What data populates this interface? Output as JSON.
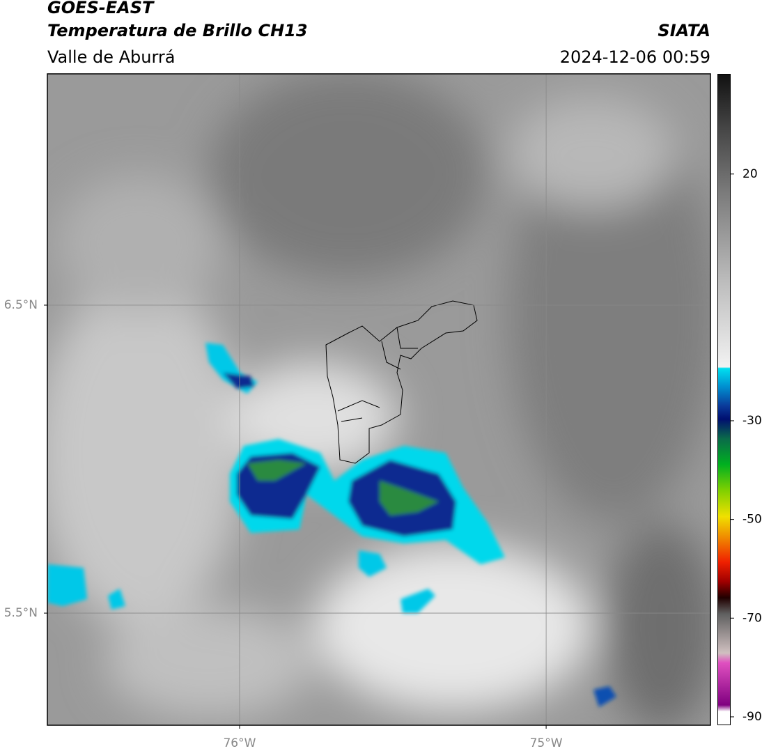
{
  "header": {
    "title": "GOES-EAST",
    "subtitle": "Temperatura de Brillo CH13",
    "region": "Valle de Aburrá",
    "source": "SIATA",
    "timestamp": "2024-12-06 00:59"
  },
  "map": {
    "xlim": [
      -76.627,
      -74.464
    ],
    "ylim": [
      5.136,
      7.251
    ],
    "xticks": [
      {
        "value": -76,
        "label": "76°W"
      },
      {
        "value": -75,
        "label": "75°W"
      }
    ],
    "yticks": [
      {
        "value": 6.5,
        "label": "6.5°N"
      },
      {
        "value": 5.5,
        "label": "5.5°N"
      }
    ],
    "grid": true
  },
  "colorbar": {
    "lim": [
      -91.7,
      40.3
    ],
    "ticks": [
      20,
      -30,
      -50,
      -70,
      -90
    ]
  }
}
